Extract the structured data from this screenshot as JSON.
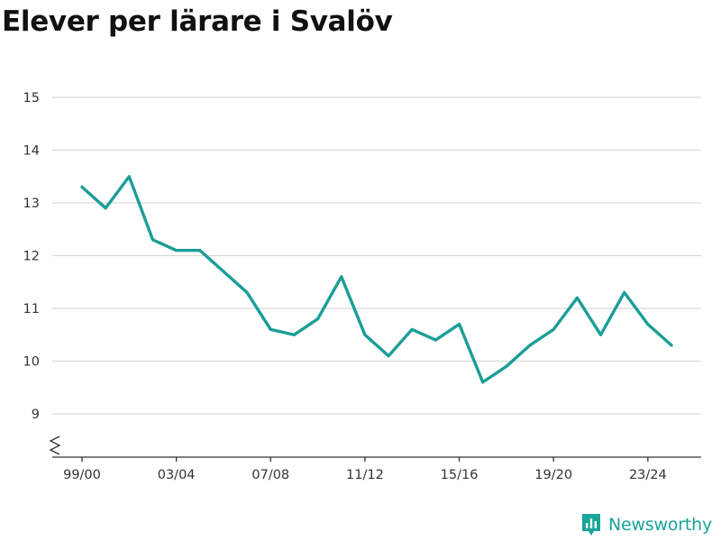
{
  "header": {
    "title": "Elever per lärare i Svalöv"
  },
  "branding": {
    "name": "Newsworthy",
    "icon": "newsworthy-logo-icon"
  },
  "colors": {
    "line": "#1b9e97",
    "grid": "#d9d9d9",
    "axis": "#333333",
    "brand": "#19a49a"
  },
  "chart_data": {
    "type": "line",
    "title": "Elever per lärare i Svalöv",
    "xlabel": "",
    "ylabel": "",
    "categories": [
      "99/00",
      "00/01",
      "01/02",
      "02/03",
      "03/04",
      "04/05",
      "05/06",
      "06/07",
      "07/08",
      "08/09",
      "09/10",
      "10/11",
      "11/12",
      "12/13",
      "13/14",
      "14/15",
      "15/16",
      "16/17",
      "17/18",
      "18/19",
      "19/20",
      "20/21",
      "21/22",
      "22/23",
      "23/24",
      "24/25"
    ],
    "values": [
      13.3,
      12.9,
      13.5,
      12.3,
      12.1,
      12.1,
      11.7,
      11.3,
      10.6,
      10.5,
      10.8,
      11.6,
      10.5,
      10.1,
      10.6,
      10.4,
      10.7,
      9.6,
      9.9,
      10.3,
      10.6,
      11.2,
      10.5,
      11.3,
      10.7,
      10.3
    ],
    "xtick_labels": [
      "99/00",
      "03/04",
      "07/08",
      "11/12",
      "15/16",
      "19/20",
      "23/24"
    ],
    "ytick_labels": [
      "9",
      "10",
      "11",
      "12",
      "13",
      "14",
      "15"
    ],
    "ylim": [
      9,
      15
    ],
    "y_axis_break": true,
    "grid": true,
    "legend": "none"
  }
}
